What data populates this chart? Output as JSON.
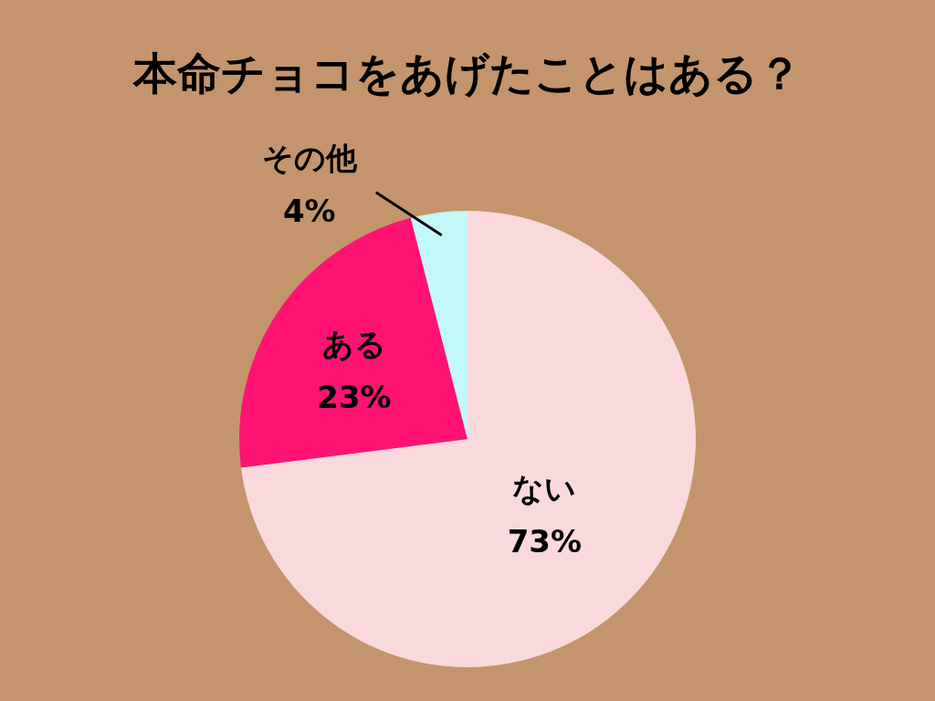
{
  "chart_data": {
    "type": "pie",
    "title": "本命チョコをあげたことはある？",
    "categories": [
      "ない",
      "ある",
      "その他"
    ],
    "values": [
      73,
      23,
      4
    ],
    "colors": [
      "#f9d9dc",
      "#fe1373",
      "#c3f8fb"
    ],
    "value_labels": [
      "73%",
      "23%",
      "4%"
    ]
  }
}
